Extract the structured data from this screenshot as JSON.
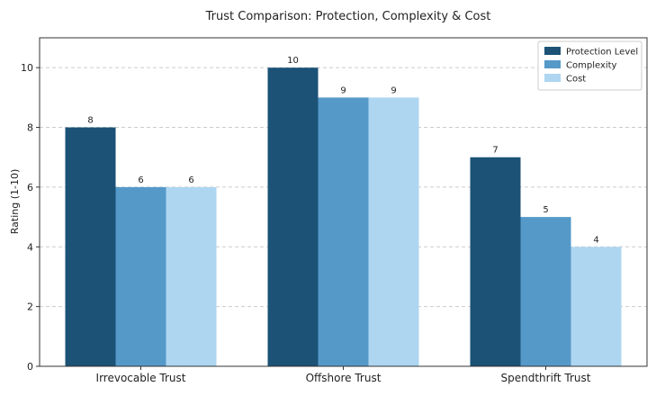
{
  "chart_data": {
    "type": "bar",
    "title": "Trust Comparison: Protection, Complexity & Cost",
    "xlabel": "",
    "ylabel": "Rating (1-10)",
    "categories": [
      "Irrevocable Trust",
      "Offshore Trust",
      "Spendthrift Trust"
    ],
    "series": [
      {
        "name": "Protection Level",
        "values": [
          8,
          10,
          7
        ],
        "color": "#1b5276"
      },
      {
        "name": "Complexity",
        "values": [
          6,
          9,
          5
        ],
        "color": "#5599c9"
      },
      {
        "name": "Cost",
        "values": [
          6,
          9,
          4
        ],
        "color": "#aed6f1"
      }
    ],
    "ylim": [
      0,
      11
    ],
    "yticks": [
      0,
      2,
      4,
      6,
      8,
      10
    ],
    "grid": true,
    "legend_position": "top-right"
  }
}
